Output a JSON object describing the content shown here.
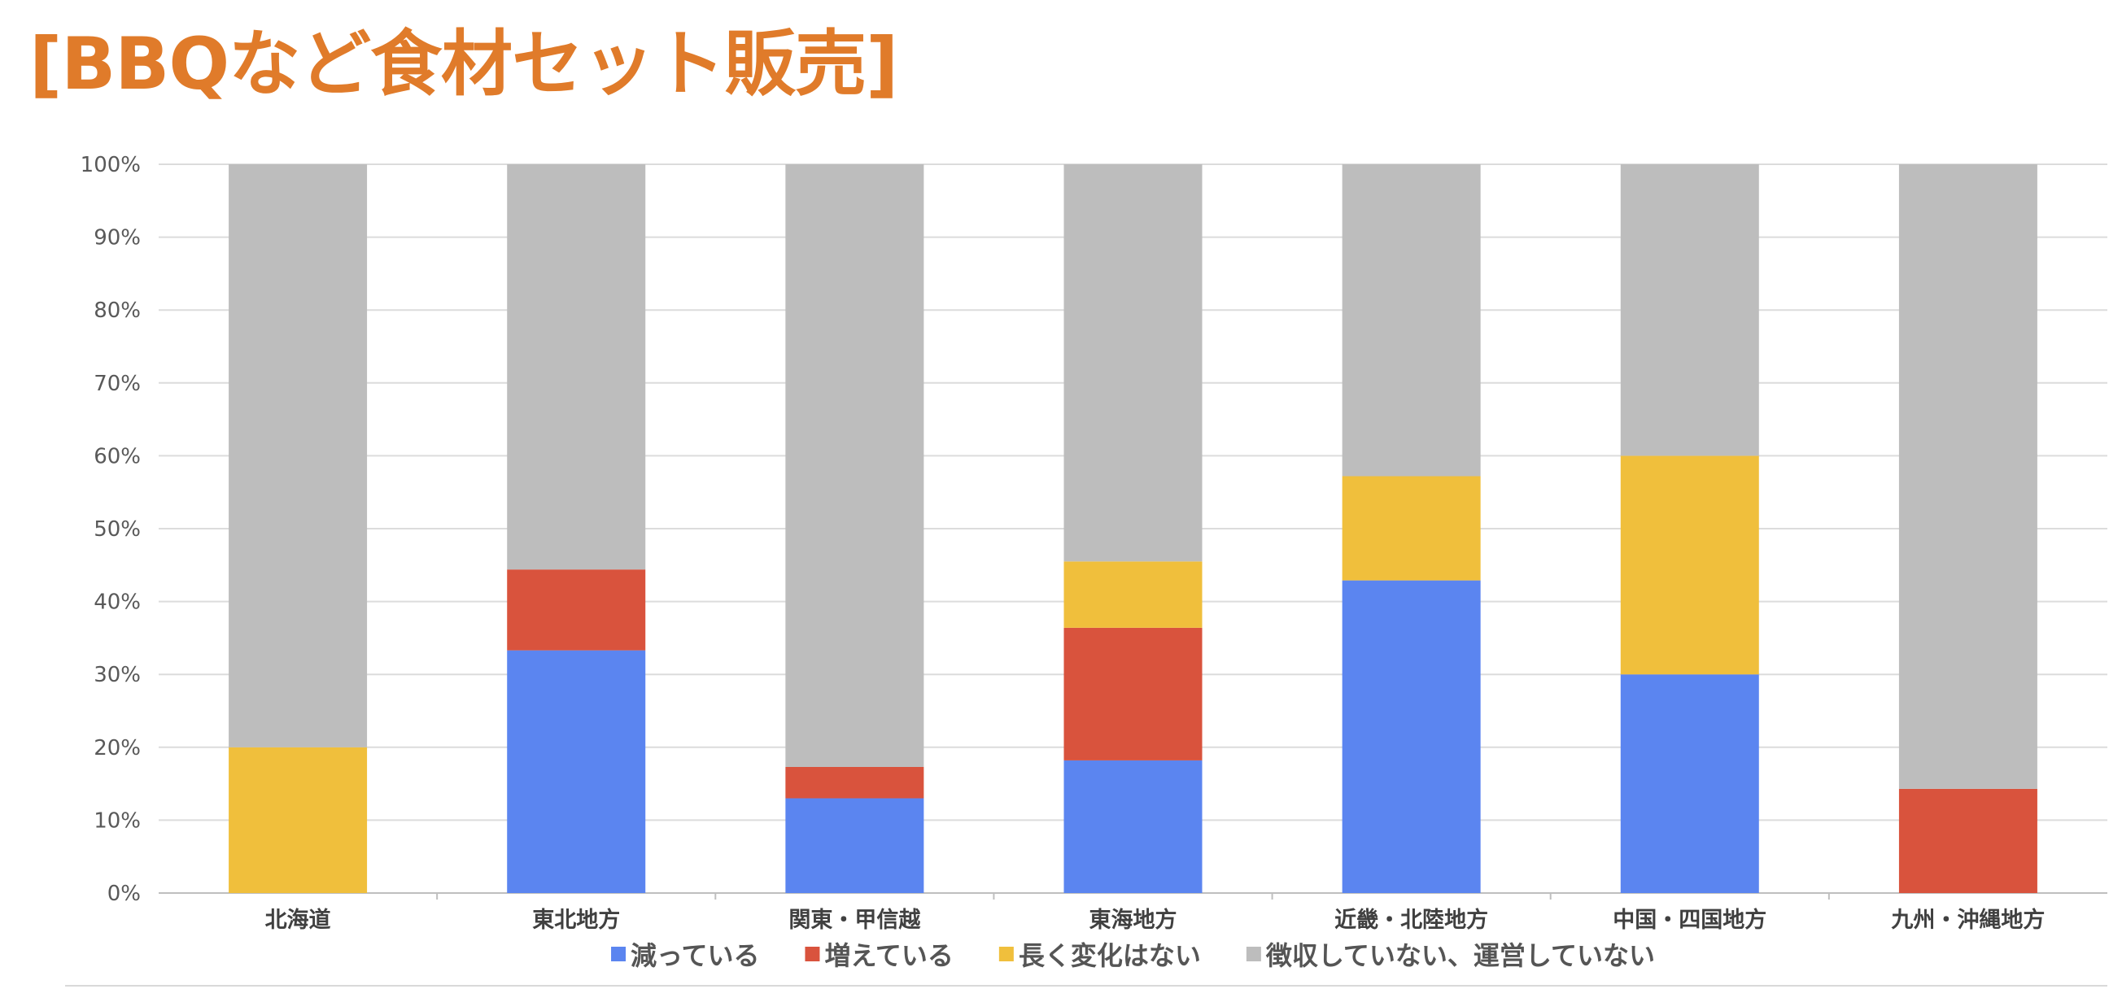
{
  "title": "[BBQなど食材セット販売]",
  "chart_data": {
    "type": "bar",
    "stacked": true,
    "title": "",
    "xlabel": "",
    "ylabel": "",
    "ylim": [
      0,
      100
    ],
    "y_ticks": [
      "0%",
      "10%",
      "20%",
      "30%",
      "40%",
      "50%",
      "60%",
      "70%",
      "80%",
      "90%",
      "100%"
    ],
    "grid": true,
    "legend_position": "bottom",
    "categories": [
      "北海道",
      "東北地方",
      "関東・甲信越",
      "東海地方",
      "近畿・北陸地方",
      "中国・四国地方",
      "九州・沖縄地方"
    ],
    "series": [
      {
        "name": "減っている",
        "color": "#5b85f0",
        "values": [
          0,
          33.3,
          13.0,
          18.2,
          42.9,
          30.0,
          0
        ]
      },
      {
        "name": "増えている",
        "color": "#d9533d",
        "values": [
          0,
          11.1,
          4.3,
          18.2,
          0,
          0,
          14.3
        ]
      },
      {
        "name": "長く変化はない",
        "color": "#f0bf3c",
        "values": [
          20.0,
          0,
          0,
          9.1,
          14.3,
          30.0,
          0
        ]
      },
      {
        "name": "徴収していない、運営していない",
        "color": "#bdbdbd",
        "values": [
          80.0,
          55.6,
          82.7,
          54.5,
          42.8,
          40.0,
          85.7
        ]
      }
    ]
  }
}
